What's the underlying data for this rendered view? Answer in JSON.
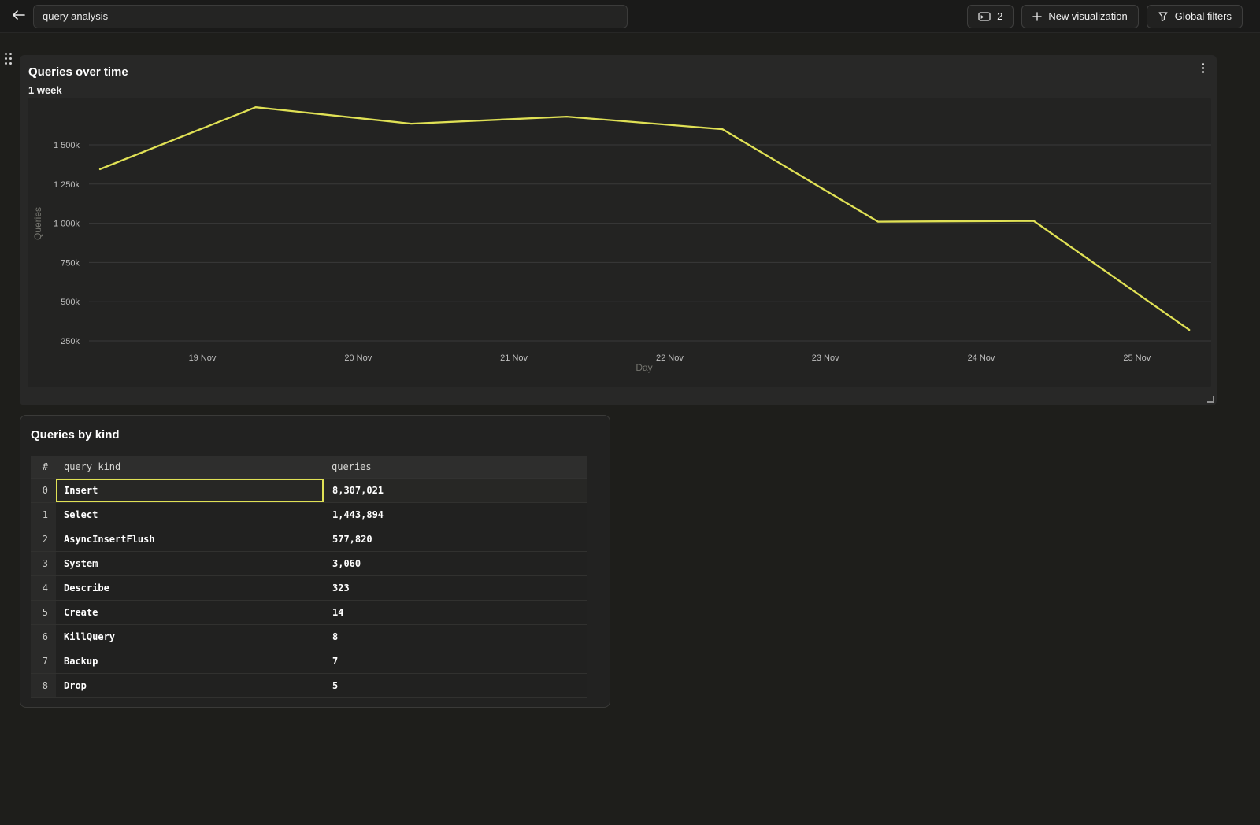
{
  "topbar": {
    "search_value": "query analysis",
    "query_count_label": "2",
    "new_visualization_label": "New visualization",
    "global_filters_label": "Global filters",
    "icons": [
      "back-arrow-icon",
      "terminal-icon",
      "plus-icon",
      "funnel-icon"
    ]
  },
  "chart_panel": {
    "title": "Queries over time",
    "subtitle": "1 week"
  },
  "table_panel": {
    "title": "Queries by kind",
    "columns": {
      "index": "#",
      "kind": "query_kind",
      "queries": "queries"
    },
    "rows": [
      {
        "index": "0",
        "kind": "Insert",
        "queries": "8,307,021",
        "selected": true
      },
      {
        "index": "1",
        "kind": "Select",
        "queries": "1,443,894",
        "selected": false
      },
      {
        "index": "2",
        "kind": "AsyncInsertFlush",
        "queries": "577,820",
        "selected": false
      },
      {
        "index": "3",
        "kind": "System",
        "queries": "3,060",
        "selected": false
      },
      {
        "index": "4",
        "kind": "Describe",
        "queries": "323",
        "selected": false
      },
      {
        "index": "5",
        "kind": "Create",
        "queries": "14",
        "selected": false
      },
      {
        "index": "6",
        "kind": "KillQuery",
        "queries": "8",
        "selected": false
      },
      {
        "index": "7",
        "kind": "Backup",
        "queries": "7",
        "selected": false
      },
      {
        "index": "8",
        "kind": "Drop",
        "queries": "5",
        "selected": false
      }
    ]
  },
  "chart_data": {
    "type": "line",
    "title": "Queries over time",
    "subtitle": "1 week",
    "xlabel": "Day",
    "ylabel": "Queries",
    "x_ticks": [
      "19 Nov",
      "20 Nov",
      "21 Nov",
      "22 Nov",
      "23 Nov",
      "24 Nov",
      "25 Nov"
    ],
    "y_ticks": [
      {
        "label": "1 500k",
        "value_k": 1500
      },
      {
        "label": "1 250k",
        "value_k": 1250
      },
      {
        "label": "1 000k",
        "value_k": 1000
      },
      {
        "label": "750k",
        "value_k": 750
      },
      {
        "label": "500k",
        "value_k": 500
      },
      {
        "label": "250k",
        "value_k": 250
      }
    ],
    "grid": "horizontal",
    "legend": "none",
    "y_axis_range_k": [
      130,
      1780
    ],
    "series": [
      {
        "name": "Queries",
        "color": "#e0e155",
        "points": [
          {
            "x": "18 Nov",
            "value_k": 1345
          },
          {
            "x": "19 Nov",
            "value_k": 1740
          },
          {
            "x": "20 Nov",
            "value_k": 1635
          },
          {
            "x": "21 Nov",
            "value_k": 1680
          },
          {
            "x": "22 Nov",
            "value_k": 1600
          },
          {
            "x": "23 Nov",
            "value_k": 1010
          },
          {
            "x": "24 Nov",
            "value_k": 1015
          },
          {
            "x": "25 Nov",
            "value_k": 320
          }
        ]
      }
    ]
  },
  "colors": {
    "accent_yellow": "#e0e155",
    "page_bg": "#1e1e1b",
    "panel_bg": "#282827",
    "chart_bg": "#232322"
  }
}
